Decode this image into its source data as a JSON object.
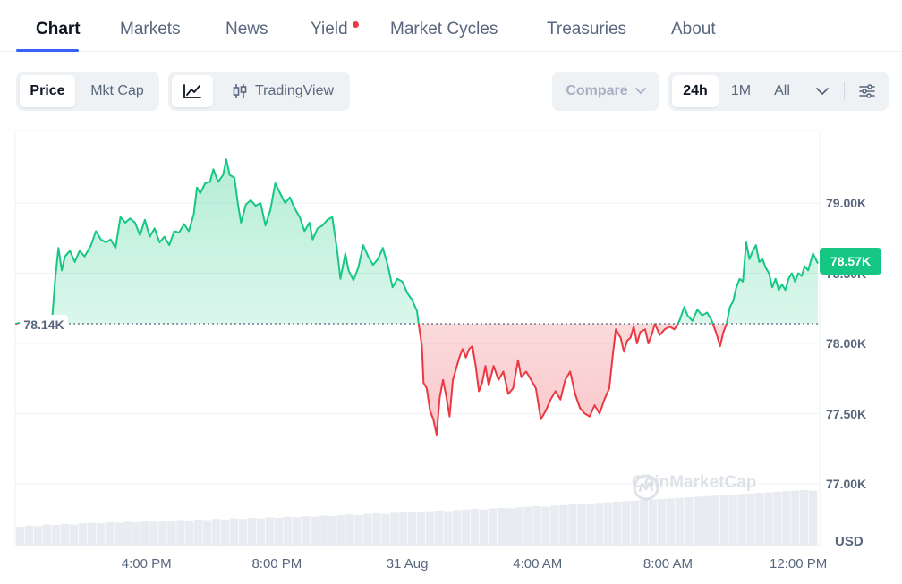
{
  "tabs": [
    {
      "label": "Chart",
      "active": true
    },
    {
      "label": "Markets"
    },
    {
      "label": "News"
    },
    {
      "label": "Yield",
      "badge": true
    },
    {
      "label": "Market Cycles"
    },
    {
      "label": "Treasuries"
    },
    {
      "label": "About"
    }
  ],
  "toolbar": {
    "metric": [
      "Price",
      "Mkt Cap"
    ],
    "metric_selected": "Price",
    "tradingview_label": "TradingView",
    "compare_label": "Compare",
    "ranges": [
      "24h",
      "1M",
      "All"
    ],
    "range_selected": "24h"
  },
  "icons": {
    "line_chart": "line-chart-icon",
    "candles": "candlestick-icon",
    "chevron": "chevron-down-icon",
    "settings": "settings-sliders-icon",
    "watermark": "coinmarketcap-logo-icon"
  },
  "colors": {
    "up": "#16c784",
    "down": "#ea3943",
    "accent": "#3861fb"
  },
  "chart_data": {
    "type": "area",
    "title": "",
    "xlabel": "",
    "ylabel": "",
    "currency_label": "USD",
    "baseline_value": 78.14,
    "baseline_label": "78.14K",
    "current_value": 78.57,
    "current_label": "78.57K",
    "ylim": [
      76.9,
      79.35
    ],
    "y_ticks": [
      {
        "value": 79.0,
        "label": "79.00K"
      },
      {
        "value": 78.5,
        "label": "78.50K"
      },
      {
        "value": 78.0,
        "label": "78.00K"
      },
      {
        "value": 77.5,
        "label": "77.50K"
      },
      {
        "value": 77.0,
        "label": "77.00K"
      }
    ],
    "x_ticks": [
      "4:00 PM",
      "8:00 PM",
      "31 Aug",
      "4:00 AM",
      "8:00 AM",
      "12:00 PM"
    ],
    "x_tick_hours": [
      4,
      8,
      12,
      16,
      20,
      24
    ],
    "watermark": "CoinMarketCap",
    "series": [
      {
        "unit": "K USD",
        "points": [
          [
            0.0,
            78.14
          ],
          [
            0.3,
            78.16
          ],
          [
            0.6,
            78.15
          ],
          [
            0.9,
            78.18
          ],
          [
            1.1,
            78.16
          ],
          [
            1.2,
            78.46
          ],
          [
            1.3,
            78.68
          ],
          [
            1.4,
            78.52
          ],
          [
            1.5,
            78.62
          ],
          [
            1.65,
            78.66
          ],
          [
            1.8,
            78.58
          ],
          [
            1.95,
            78.66
          ],
          [
            2.1,
            78.62
          ],
          [
            2.3,
            78.7
          ],
          [
            2.45,
            78.8
          ],
          [
            2.6,
            78.74
          ],
          [
            2.75,
            78.72
          ],
          [
            2.9,
            78.74
          ],
          [
            3.05,
            78.68
          ],
          [
            3.2,
            78.9
          ],
          [
            3.35,
            78.86
          ],
          [
            3.5,
            78.89
          ],
          [
            3.65,
            78.86
          ],
          [
            3.8,
            78.77
          ],
          [
            3.95,
            78.88
          ],
          [
            4.1,
            78.76
          ],
          [
            4.25,
            78.82
          ],
          [
            4.4,
            78.72
          ],
          [
            4.55,
            78.76
          ],
          [
            4.7,
            78.7
          ],
          [
            4.85,
            78.8
          ],
          [
            5.0,
            78.79
          ],
          [
            5.15,
            78.85
          ],
          [
            5.3,
            78.8
          ],
          [
            5.45,
            78.92
          ],
          [
            5.55,
            79.11
          ],
          [
            5.65,
            79.07
          ],
          [
            5.8,
            79.14
          ],
          [
            5.95,
            79.15
          ],
          [
            6.05,
            79.24
          ],
          [
            6.2,
            79.15
          ],
          [
            6.35,
            79.2
          ],
          [
            6.45,
            79.31
          ],
          [
            6.55,
            79.2
          ],
          [
            6.7,
            79.18
          ],
          [
            6.8,
            79.0
          ],
          [
            6.9,
            78.86
          ],
          [
            7.05,
            78.99
          ],
          [
            7.2,
            79.02
          ],
          [
            7.35,
            78.98
          ],
          [
            7.5,
            79.0
          ],
          [
            7.65,
            78.84
          ],
          [
            7.8,
            78.95
          ],
          [
            7.95,
            79.14
          ],
          [
            8.1,
            79.07
          ],
          [
            8.25,
            79.0
          ],
          [
            8.4,
            79.04
          ],
          [
            8.55,
            78.96
          ],
          [
            8.7,
            78.9
          ],
          [
            8.85,
            78.8
          ],
          [
            9.0,
            78.86
          ],
          [
            9.1,
            78.74
          ],
          [
            9.25,
            78.82
          ],
          [
            9.4,
            78.84
          ],
          [
            9.55,
            78.88
          ],
          [
            9.7,
            78.9
          ],
          [
            9.85,
            78.66
          ],
          [
            9.95,
            78.46
          ],
          [
            10.1,
            78.64
          ],
          [
            10.2,
            78.52
          ],
          [
            10.35,
            78.45
          ],
          [
            10.5,
            78.54
          ],
          [
            10.65,
            78.7
          ],
          [
            10.8,
            78.62
          ],
          [
            10.95,
            78.56
          ],
          [
            11.1,
            78.6
          ],
          [
            11.25,
            78.68
          ],
          [
            11.4,
            78.56
          ],
          [
            11.55,
            78.4
          ],
          [
            11.7,
            78.46
          ],
          [
            11.85,
            78.44
          ],
          [
            12.0,
            78.36
          ],
          [
            12.15,
            78.31
          ],
          [
            12.3,
            78.23
          ],
          [
            12.35,
            78.14
          ],
          [
            12.45,
            77.98
          ],
          [
            12.5,
            77.72
          ],
          [
            12.6,
            77.68
          ],
          [
            12.7,
            77.52
          ],
          [
            12.8,
            77.46
          ],
          [
            12.9,
            77.35
          ],
          [
            13.0,
            77.62
          ],
          [
            13.1,
            77.74
          ],
          [
            13.2,
            77.62
          ],
          [
            13.3,
            77.48
          ],
          [
            13.4,
            77.74
          ],
          [
            13.5,
            77.82
          ],
          [
            13.6,
            77.9
          ],
          [
            13.7,
            77.96
          ],
          [
            13.8,
            77.9
          ],
          [
            13.9,
            77.96
          ],
          [
            14.0,
            77.98
          ],
          [
            14.1,
            77.84
          ],
          [
            14.2,
            77.66
          ],
          [
            14.3,
            77.72
          ],
          [
            14.4,
            77.84
          ],
          [
            14.5,
            77.7
          ],
          [
            14.65,
            77.84
          ],
          [
            14.8,
            77.74
          ],
          [
            14.95,
            77.8
          ],
          [
            15.1,
            77.64
          ],
          [
            15.25,
            77.68
          ],
          [
            15.4,
            77.88
          ],
          [
            15.5,
            77.76
          ],
          [
            15.65,
            77.8
          ],
          [
            15.8,
            77.74
          ],
          [
            15.95,
            77.68
          ],
          [
            16.1,
            77.46
          ],
          [
            16.25,
            77.52
          ],
          [
            16.4,
            77.6
          ],
          [
            16.55,
            77.66
          ],
          [
            16.7,
            77.6
          ],
          [
            16.85,
            77.74
          ],
          [
            17.0,
            77.8
          ],
          [
            17.15,
            77.64
          ],
          [
            17.3,
            77.54
          ],
          [
            17.45,
            77.5
          ],
          [
            17.6,
            77.48
          ],
          [
            17.75,
            77.56
          ],
          [
            17.9,
            77.5
          ],
          [
            18.05,
            77.6
          ],
          [
            18.2,
            77.68
          ],
          [
            18.3,
            77.9
          ],
          [
            18.4,
            78.1
          ],
          [
            18.55,
            78.04
          ],
          [
            18.65,
            77.94
          ],
          [
            18.75,
            78.02
          ],
          [
            18.85,
            78.04
          ],
          [
            18.95,
            78.12
          ],
          [
            19.05,
            78.0
          ],
          [
            19.15,
            78.08
          ],
          [
            19.3,
            78.1
          ],
          [
            19.4,
            78.0
          ],
          [
            19.5,
            78.06
          ],
          [
            19.6,
            78.14
          ],
          [
            19.75,
            78.06
          ],
          [
            19.9,
            78.1
          ],
          [
            20.05,
            78.12
          ],
          [
            20.2,
            78.1
          ],
          [
            20.35,
            78.16
          ],
          [
            20.5,
            78.26
          ],
          [
            20.6,
            78.2
          ],
          [
            20.75,
            78.16
          ],
          [
            20.9,
            78.24
          ],
          [
            21.05,
            78.2
          ],
          [
            21.2,
            78.22
          ],
          [
            21.35,
            78.16
          ],
          [
            21.5,
            78.06
          ],
          [
            21.6,
            77.98
          ],
          [
            21.7,
            78.08
          ],
          [
            21.8,
            78.14
          ],
          [
            21.9,
            78.26
          ],
          [
            22.0,
            78.3
          ],
          [
            22.1,
            78.4
          ],
          [
            22.2,
            78.46
          ],
          [
            22.3,
            78.44
          ],
          [
            22.4,
            78.72
          ],
          [
            22.5,
            78.6
          ],
          [
            22.6,
            78.66
          ],
          [
            22.7,
            78.7
          ],
          [
            22.8,
            78.58
          ],
          [
            22.9,
            78.6
          ],
          [
            23.0,
            78.54
          ],
          [
            23.1,
            78.5
          ],
          [
            23.2,
            78.4
          ],
          [
            23.3,
            78.46
          ],
          [
            23.4,
            78.38
          ],
          [
            23.5,
            78.42
          ],
          [
            23.6,
            78.38
          ],
          [
            23.7,
            78.46
          ],
          [
            23.8,
            78.5
          ],
          [
            23.9,
            78.44
          ],
          [
            24.0,
            78.5
          ],
          [
            24.1,
            78.48
          ],
          [
            24.2,
            78.55
          ],
          [
            24.3,
            78.52
          ],
          [
            24.45,
            78.64
          ],
          [
            24.6,
            78.57
          ]
        ],
        "volume": [
          0.34,
          0.36,
          0.35,
          0.38,
          0.37,
          0.39,
          0.38,
          0.4,
          0.41,
          0.4,
          0.42,
          0.41,
          0.43,
          0.42,
          0.44,
          0.43,
          0.45,
          0.44,
          0.46,
          0.45,
          0.47,
          0.46,
          0.48,
          0.47,
          0.49,
          0.48,
          0.5,
          0.49,
          0.51,
          0.5,
          0.52,
          0.51,
          0.53,
          0.52,
          0.54,
          0.53,
          0.55,
          0.56,
          0.55,
          0.57,
          0.58,
          0.57,
          0.59,
          0.6,
          0.61,
          0.6,
          0.62,
          0.63,
          0.62,
          0.64,
          0.65,
          0.66,
          0.65,
          0.67,
          0.68,
          0.67,
          0.69,
          0.7,
          0.71,
          0.7,
          0.72,
          0.73,
          0.74,
          0.75,
          0.76,
          0.77,
          0.78,
          0.79,
          0.8,
          0.81,
          0.82,
          0.83,
          0.84,
          0.85,
          0.86,
          0.87,
          0.88,
          0.89,
          0.9,
          0.91,
          0.92,
          0.93,
          0.94,
          0.95,
          0.96,
          0.97,
          0.98,
          0.99,
          1.0,
          0.99
        ]
      }
    ]
  }
}
